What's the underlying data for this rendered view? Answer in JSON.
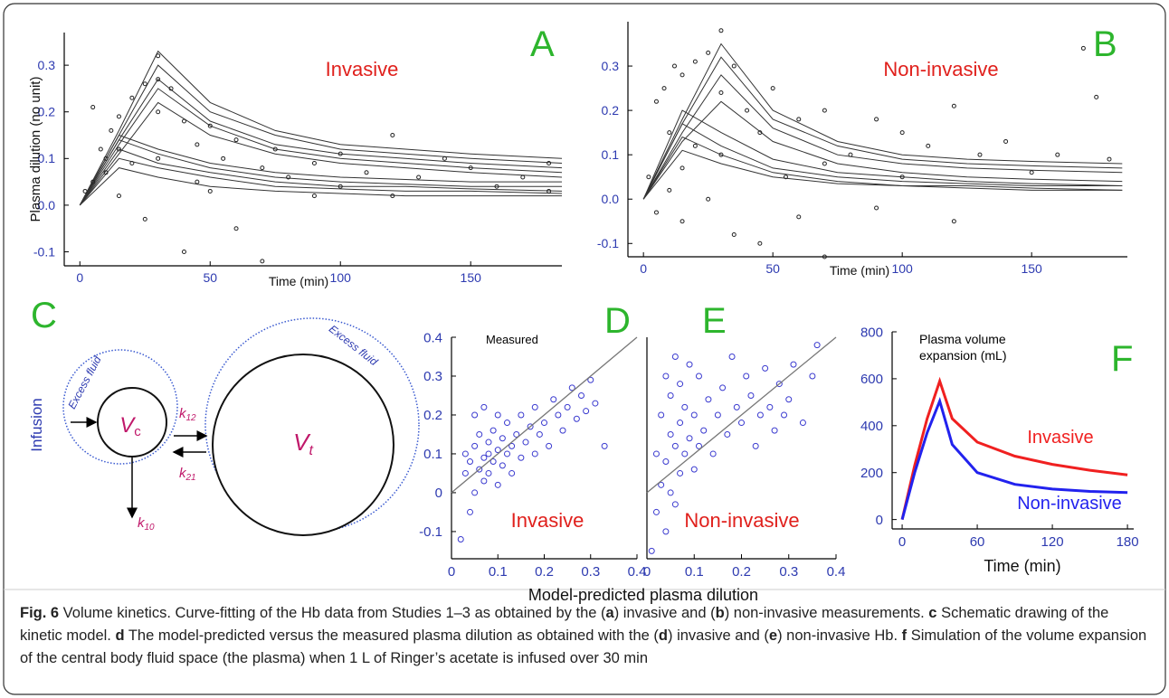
{
  "chart_data": [
    {
      "type": "line",
      "panel_label": "A",
      "title": "Invasive",
      "xlabel": "Time (min)",
      "ylabel": "Plasma dilution (no unit)",
      "xlim": [
        -6,
        185
      ],
      "ylim": [
        -0.13,
        0.37
      ],
      "xticks": [
        0,
        50,
        100,
        150
      ],
      "yticks": [
        -0.1,
        {
          "value": 0,
          "label": "0.0"
        },
        0.1,
        0.2,
        0.3
      ],
      "tick_label_color": "#2d3ab0",
      "panel_label_color": "#2db52d",
      "title_color": "#e0201c",
      "point_color": "#222222",
      "x": [
        0,
        15,
        30,
        50,
        75,
        100,
        125,
        150,
        185
      ],
      "series": [
        {
          "color": "#333333",
          "values": [
            0,
            0.16,
            0.33,
            0.22,
            0.16,
            0.13,
            0.12,
            0.11,
            0.1
          ]
        },
        {
          "color": "#333333",
          "values": [
            0,
            0.15,
            0.3,
            0.2,
            0.15,
            0.12,
            0.11,
            0.1,
            0.09
          ]
        },
        {
          "color": "#333333",
          "values": [
            0,
            0.14,
            0.27,
            0.18,
            0.13,
            0.11,
            0.1,
            0.09,
            0.08
          ]
        },
        {
          "color": "#333333",
          "values": [
            0,
            0.13,
            0.25,
            0.17,
            0.12,
            0.1,
            0.09,
            0.08,
            0.07
          ]
        },
        {
          "color": "#333333",
          "values": [
            0,
            0.11,
            0.22,
            0.15,
            0.11,
            0.09,
            0.08,
            0.07,
            0.06
          ]
        },
        {
          "color": "#333333",
          "values": [
            0,
            0.15,
            0.12,
            0.09,
            0.07,
            0.06,
            0.055,
            0.05,
            0.05
          ]
        },
        {
          "color": "#333333",
          "values": [
            0,
            0.14,
            0.11,
            0.08,
            0.06,
            0.05,
            0.045,
            0.04,
            0.04
          ]
        },
        {
          "color": "#333333",
          "values": [
            0,
            0.12,
            0.09,
            0.07,
            0.05,
            0.04,
            0.04,
            0.035,
            0.03
          ]
        },
        {
          "color": "#333333",
          "values": [
            0,
            0.1,
            0.08,
            0.06,
            0.04,
            0.035,
            0.03,
            0.03,
            0.025
          ]
        },
        {
          "color": "#333333",
          "values": [
            0,
            0.08,
            0.06,
            0.04,
            0.03,
            0.025,
            0.02,
            0.02,
            0.02
          ]
        }
      ],
      "points": {
        "x": [
          2,
          5,
          5,
          8,
          10,
          10,
          12,
          15,
          15,
          15,
          20,
          20,
          25,
          25,
          30,
          30,
          30,
          30,
          35,
          40,
          40,
          45,
          45,
          50,
          50,
          55,
          60,
          60,
          70,
          70,
          75,
          80,
          90,
          90,
          100,
          100,
          110,
          120,
          120,
          130,
          140,
          150,
          160,
          170,
          180,
          180
        ],
        "y": [
          0.03,
          0.21,
          0.05,
          0.12,
          0.1,
          0.07,
          0.16,
          0.19,
          0.02,
          0.12,
          0.23,
          0.09,
          0.26,
          -0.03,
          0.32,
          0.27,
          0.2,
          0.1,
          0.25,
          0.18,
          -0.1,
          0.13,
          0.05,
          0.17,
          0.03,
          0.1,
          0.14,
          -0.05,
          0.08,
          -0.12,
          0.12,
          0.06,
          0.09,
          0.02,
          0.11,
          0.04,
          0.07,
          0.15,
          0.02,
          0.06,
          0.1,
          0.08,
          0.04,
          0.06,
          0.03,
          0.09
        ]
      }
    },
    {
      "type": "line",
      "panel_label": "B",
      "title": "Non-invasive",
      "xlabel": "Time (min)",
      "xlim": [
        -6,
        187
      ],
      "ylim": [
        -0.13,
        0.4
      ],
      "xticks": [
        0,
        50,
        100,
        150
      ],
      "yticks": [
        -0.1,
        {
          "value": 0,
          "label": "0.0"
        },
        0.1,
        0.2,
        0.3
      ],
      "tick_label_color": "#2d3ab0",
      "panel_label_color": "#2db52d",
      "title_color": "#e0201c",
      "point_color": "#222222",
      "x": [
        0,
        15,
        30,
        50,
        75,
        100,
        125,
        150,
        185
      ],
      "series": [
        {
          "color": "#333333",
          "values": [
            0,
            0.18,
            0.35,
            0.2,
            0.13,
            0.1,
            0.09,
            0.085,
            0.08
          ]
        },
        {
          "color": "#333333",
          "values": [
            0,
            0.17,
            0.32,
            0.18,
            0.12,
            0.09,
            0.08,
            0.075,
            0.07
          ]
        },
        {
          "color": "#333333",
          "values": [
            0,
            0.15,
            0.28,
            0.16,
            0.1,
            0.08,
            0.07,
            0.065,
            0.06
          ]
        },
        {
          "color": "#333333",
          "values": [
            0,
            0.13,
            0.22,
            0.13,
            0.08,
            0.06,
            0.05,
            0.045,
            0.04
          ]
        },
        {
          "color": "#333333",
          "values": [
            0,
            0.2,
            0.15,
            0.09,
            0.06,
            0.05,
            0.04,
            0.035,
            0.03
          ]
        },
        {
          "color": "#333333",
          "values": [
            0,
            0.17,
            0.12,
            0.07,
            0.05,
            0.04,
            0.035,
            0.03,
            0.03
          ]
        },
        {
          "color": "#333333",
          "values": [
            0,
            0.14,
            0.1,
            0.06,
            0.04,
            0.03,
            0.03,
            0.025,
            0.02
          ]
        },
        {
          "color": "#333333",
          "values": [
            0,
            0.11,
            0.08,
            0.05,
            0.035,
            0.03,
            0.025,
            0.02,
            0.02
          ]
        }
      ],
      "points": {
        "x": [
          2,
          5,
          5,
          8,
          10,
          10,
          12,
          15,
          15,
          15,
          20,
          20,
          25,
          25,
          30,
          30,
          30,
          35,
          35,
          40,
          45,
          45,
          50,
          55,
          60,
          60,
          70,
          70,
          70,
          80,
          90,
          90,
          100,
          100,
          110,
          120,
          120,
          130,
          140,
          150,
          160,
          170,
          175,
          180
        ],
        "y": [
          0.05,
          0.22,
          -0.03,
          0.25,
          0.15,
          0.02,
          0.3,
          0.28,
          0.07,
          -0.05,
          0.31,
          0.12,
          0.33,
          0.0,
          0.38,
          0.24,
          0.1,
          0.3,
          -0.08,
          0.2,
          0.15,
          -0.1,
          0.25,
          0.05,
          0.18,
          -0.04,
          0.2,
          -0.13,
          0.08,
          0.1,
          0.18,
          -0.02,
          0.15,
          0.05,
          0.12,
          0.21,
          -0.05,
          0.1,
          0.13,
          0.06,
          0.1,
          0.34,
          0.23,
          0.09
        ]
      }
    },
    {
      "type": "scatter",
      "panel_label": "D",
      "title": "Invasive",
      "annotation": "Measured",
      "xlabel": "Model-predicted plasma dilution",
      "xlim": [
        0,
        0.4
      ],
      "ylim": [
        -0.17,
        0.4
      ],
      "xticks": [
        0,
        0.1,
        0.2,
        0.3,
        0.4
      ],
      "yticks": [
        -0.1,
        0,
        0.1,
        0.2,
        0.3,
        0.4
      ],
      "tick_label_color": "#2d3ab0",
      "panel_label_color": "#2db52d",
      "title_color": "#e0201c",
      "point_color": "#3a3acf",
      "reference_line": {
        "x": [
          0,
          0.4
        ],
        "y": [
          0,
          0.4
        ]
      },
      "points": {
        "x": [
          0.02,
          0.03,
          0.03,
          0.04,
          0.04,
          0.05,
          0.05,
          0.05,
          0.06,
          0.06,
          0.07,
          0.07,
          0.07,
          0.08,
          0.08,
          0.08,
          0.09,
          0.09,
          0.1,
          0.1,
          0.1,
          0.11,
          0.11,
          0.12,
          0.12,
          0.13,
          0.13,
          0.14,
          0.15,
          0.15,
          0.16,
          0.17,
          0.18,
          0.18,
          0.19,
          0.2,
          0.21,
          0.22,
          0.23,
          0.24,
          0.25,
          0.26,
          0.27,
          0.28,
          0.29,
          0.3,
          0.31,
          0.33
        ],
        "y": [
          -0.12,
          0.05,
          0.1,
          -0.05,
          0.08,
          0.0,
          0.12,
          0.2,
          0.06,
          0.15,
          0.03,
          0.09,
          0.22,
          0.1,
          0.05,
          0.13,
          0.08,
          0.16,
          0.02,
          0.11,
          0.2,
          0.07,
          0.14,
          0.1,
          0.18,
          0.05,
          0.12,
          0.15,
          0.09,
          0.2,
          0.13,
          0.17,
          0.1,
          0.22,
          0.15,
          0.18,
          0.12,
          0.24,
          0.2,
          0.16,
          0.22,
          0.27,
          0.19,
          0.25,
          0.21,
          0.29,
          0.23,
          0.12
        ]
      }
    },
    {
      "type": "scatter",
      "panel_label": "E",
      "title": "Non-invasive",
      "xlim": [
        0,
        0.4
      ],
      "ylim": [
        -0.17,
        0.4
      ],
      "xticks": [
        0,
        0.1,
        0.2,
        0.3,
        0.4
      ],
      "tick_label_color": "#2d3ab0",
      "panel_label_color": "#2db52d",
      "title_color": "#e0201c",
      "point_color": "#3a3acf",
      "reference_line": {
        "x": [
          0,
          0.4
        ],
        "y": [
          0,
          0.4
        ]
      },
      "points": {
        "x": [
          0.01,
          0.02,
          0.02,
          0.03,
          0.03,
          0.04,
          0.04,
          0.04,
          0.05,
          0.05,
          0.05,
          0.06,
          0.06,
          0.06,
          0.07,
          0.07,
          0.07,
          0.08,
          0.08,
          0.09,
          0.09,
          0.1,
          0.1,
          0.11,
          0.11,
          0.12,
          0.13,
          0.14,
          0.15,
          0.16,
          0.17,
          0.18,
          0.19,
          0.2,
          0.21,
          0.22,
          0.23,
          0.24,
          0.25,
          0.26,
          0.27,
          0.28,
          0.29,
          0.3,
          0.31,
          0.33,
          0.35,
          0.36
        ],
        "y": [
          -0.15,
          0.1,
          -0.05,
          0.2,
          0.02,
          0.3,
          0.08,
          -0.1,
          0.15,
          0.25,
          0.0,
          0.12,
          0.35,
          -0.03,
          0.18,
          0.05,
          0.28,
          0.1,
          0.22,
          0.14,
          0.33,
          0.06,
          0.2,
          0.12,
          0.3,
          0.16,
          0.24,
          0.1,
          0.2,
          0.27,
          0.15,
          0.35,
          0.22,
          0.18,
          0.3,
          0.25,
          0.12,
          0.2,
          0.32,
          0.22,
          0.16,
          0.28,
          0.2,
          0.24,
          0.33,
          0.18,
          0.3,
          0.38
        ]
      }
    },
    {
      "type": "line",
      "panel_label": "F",
      "annotation_lines": [
        "Plasma volume",
        "expansion (mL)"
      ],
      "xlabel": "Time (min)",
      "xlim": [
        -8,
        185
      ],
      "ylim": [
        -40,
        800
      ],
      "xticks": [
        0,
        60,
        120,
        180
      ],
      "yticks": [
        0,
        200,
        400,
        600,
        800
      ],
      "tick_label_color": "#2d3ab0",
      "panel_label_color": "#2db52d",
      "line_width": 3,
      "x": [
        0,
        10,
        20,
        30,
        40,
        60,
        90,
        120,
        150,
        180
      ],
      "series": [
        {
          "name": "Invasive",
          "color": "#f02020",
          "values": [
            0,
            230,
            430,
            590,
            430,
            330,
            270,
            235,
            210,
            190
          ]
        },
        {
          "name": "Non-invasive",
          "color": "#2222ee",
          "values": [
            0,
            200,
            370,
            505,
            320,
            200,
            150,
            130,
            120,
            115
          ]
        }
      ]
    }
  ],
  "diagram": {
    "panel_label": "C",
    "input_label": "Infusion",
    "compartments": [
      {
        "symbol": "V",
        "subscript": "c",
        "margin_label": "Excess fluid"
      },
      {
        "symbol": "V",
        "subscript": "t",
        "margin_label": "Excess fluid"
      }
    ],
    "rates": [
      {
        "symbol": "k",
        "subscript": "12"
      },
      {
        "symbol": "k",
        "subscript": "21"
      },
      {
        "symbol": "k",
        "subscript": "10"
      }
    ]
  },
  "caption": {
    "parts": [
      {
        "text": "Fig. 6",
        "bold": true
      },
      {
        "text": " Volume kinetics. Curve-fitting of the Hb data from Studies 1–3 as obtained by the (",
        "bold": false
      },
      {
        "text": "a",
        "bold": true
      },
      {
        "text": ") invasive and (",
        "bold": false
      },
      {
        "text": "b",
        "bold": true
      },
      {
        "text": ") non-invasive measurements. ",
        "bold": false
      },
      {
        "text": "c",
        "bold": true
      },
      {
        "text": " Schematic drawing of the kinetic model. ",
        "bold": false
      },
      {
        "text": "d",
        "bold": true
      },
      {
        "text": " The model-predicted versus the measured plasma dilution as obtained with the (",
        "bold": false
      },
      {
        "text": "d",
        "bold": true
      },
      {
        "text": ") invasive and (",
        "bold": false
      },
      {
        "text": "e",
        "bold": true
      },
      {
        "text": ") non-invasive Hb. ",
        "bold": false
      },
      {
        "text": "f",
        "bold": true
      },
      {
        "text": " Simulation of the volume expansion of the central body fluid space (the plasma) when 1 L of Ringer’s acetate is infused over 30 min",
        "bold": false
      }
    ]
  }
}
